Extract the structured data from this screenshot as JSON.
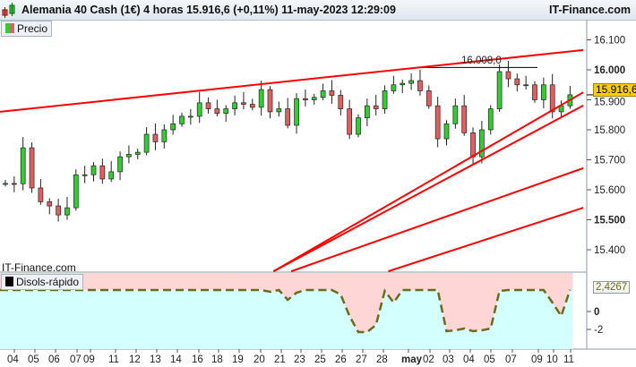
{
  "header": {
    "title": "Alemania 40 Cash (1€) 4 horas 15.916,6 (+0,11%) 11-may-2023 12:29:09",
    "brand": "IT-Finance.com",
    "icon": "candlestick-icon"
  },
  "price_panel": {
    "legend": "Precio",
    "watermark": "IT-Finance.com",
    "current_price": "15.916,6",
    "current_price_value": 15916.6,
    "y_ticks": [
      "16.100",
      "16.000",
      "15.900",
      "15.800",
      "15.700",
      "15.600",
      "15.500",
      "15.400"
    ],
    "y_tick_values": [
      16100,
      16000,
      15900,
      15800,
      15700,
      15600,
      15500,
      15400
    ],
    "resistance_label": "16.008,0",
    "resistance_value": 16008,
    "closes": [
      15621,
      15620,
      15740,
      15606,
      15560,
      15546,
      15516,
      15540,
      15650,
      15650,
      15680,
      15636,
      15660,
      15710,
      15718,
      15725,
      15785,
      15760,
      15800,
      15820,
      15845,
      15845,
      15890,
      15870,
      15855,
      15870,
      15890,
      15885,
      15875,
      15934,
      15860,
      15870,
      15815,
      15904,
      15900,
      15908,
      15930,
      15915,
      15870,
      15785,
      15840,
      15880,
      15870,
      15930,
      15950,
      15955,
      15964,
      15930,
      15880,
      15770,
      15820,
      15880,
      15790,
      15710,
      15800,
      15870,
      15994,
      15970,
      15950,
      15950,
      15900,
      15950,
      15860,
      15880,
      15916.6
    ],
    "trendlines": [
      {
        "from": [
          0,
          15860
        ],
        "to": [
          65.5,
          16066
        ]
      },
      {
        "from": [
          31,
          15328
        ],
        "to": [
          65.5,
          15925
        ]
      },
      {
        "from": [
          31,
          15328
        ],
        "to": [
          65.5,
          15881
        ]
      },
      {
        "from": [
          33,
          15328
        ],
        "to": [
          65.5,
          15672
        ]
      },
      {
        "from": [
          44,
          15328
        ],
        "to": [
          65.5,
          15540
        ]
      }
    ],
    "colors": {
      "up": "#33cc33",
      "down": "#e06060",
      "trendline": "#ff0000",
      "price_label_bg": "#ffcc00"
    }
  },
  "oscillator": {
    "legend": "Disols-rápido",
    "current_value": "2,4267",
    "y_ticks": [
      "0",
      "-2"
    ],
    "y_tick_values": [
      0,
      -2
    ],
    "values": [
      2.4,
      2.4,
      2.4,
      2.4,
      2.4,
      2.4,
      2.4,
      2.4,
      2.4,
      2.4,
      2.4,
      2.4,
      2.4,
      2.4,
      2.4,
      2.4,
      2.4,
      2.4,
      2.4,
      2.4,
      2.4,
      2.4,
      2.4,
      2.4,
      2.4,
      2.4,
      2.4,
      2.4,
      2.4,
      2.4,
      2.2,
      2.4,
      1.3,
      2.1,
      2.4,
      2.4,
      2.4,
      2.4,
      1.9,
      -0.5,
      -2.3,
      -2.3,
      -1.5,
      2.3,
      1.0,
      2.4,
      2.4,
      2.4,
      2.4,
      2.4,
      -2.2,
      -2.1,
      -1.9,
      -2.2,
      -2.1,
      -1.9,
      2.3,
      2.4,
      2.4,
      2.4,
      2.4,
      2.4,
      1.0,
      -0.5,
      2.43
    ],
    "colors": {
      "above": "#ffd6d6",
      "below": "#d4ffff",
      "line": "#6b6b1e"
    }
  },
  "x_axis": {
    "labels": [
      "04",
      "05",
      "06",
      "07",
      "09",
      "11",
      "12",
      "13",
      "14",
      "16",
      "18",
      "19",
      "20",
      "21",
      "23",
      "25",
      "26",
      "27",
      "28",
      "may",
      "02",
      "03",
      "04",
      "05",
      "07",
      "09",
      "10",
      "11"
    ]
  }
}
